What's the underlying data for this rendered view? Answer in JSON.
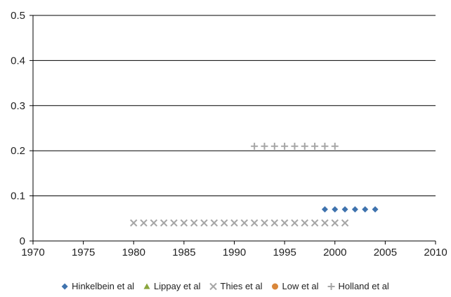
{
  "chart_data": {
    "type": "scatter",
    "title": "",
    "xlabel": "",
    "ylabel": "",
    "xlim": [
      1970,
      2010
    ],
    "ylim": [
      0,
      0.5
    ],
    "x_ticks": [
      1970,
      1975,
      1980,
      1985,
      1990,
      1995,
      2000,
      2005,
      2010
    ],
    "y_ticks": [
      0,
      0.1,
      0.2,
      0.3,
      0.4,
      0.5
    ],
    "x_tick_labels": [
      "1970",
      "1975",
      "1980",
      "1985",
      "1990",
      "1995",
      "2000",
      "2005",
      "2010"
    ],
    "y_tick_labels": [
      "0",
      "0.1",
      "0.2",
      "0.3",
      "0.4",
      "0.5"
    ],
    "grid": "horizontal",
    "legend_position": "bottom",
    "series": [
      {
        "name": "Hinkelbein et al",
        "marker": "diamond",
        "color": "#3f73ae",
        "points": [
          [
            1999,
            0.07
          ],
          [
            2000,
            0.07
          ],
          [
            2001,
            0.07
          ],
          [
            2002,
            0.07
          ],
          [
            2003,
            0.07
          ],
          [
            2004,
            0.07
          ]
        ]
      },
      {
        "name": "Lippay et al",
        "marker": "triangle",
        "color": "#8aa63d",
        "points": []
      },
      {
        "name": "Thies et al",
        "marker": "x",
        "color": "#a6a6a6",
        "points": [
          [
            1980,
            0.04
          ],
          [
            1981,
            0.04
          ],
          [
            1982,
            0.04
          ],
          [
            1983,
            0.04
          ],
          [
            1984,
            0.04
          ],
          [
            1985,
            0.04
          ],
          [
            1986,
            0.04
          ],
          [
            1987,
            0.04
          ],
          [
            1988,
            0.04
          ],
          [
            1989,
            0.04
          ],
          [
            1990,
            0.04
          ],
          [
            1991,
            0.04
          ],
          [
            1992,
            0.04
          ],
          [
            1993,
            0.04
          ],
          [
            1994,
            0.04
          ],
          [
            1995,
            0.04
          ],
          [
            1996,
            0.04
          ],
          [
            1997,
            0.04
          ],
          [
            1998,
            0.04
          ],
          [
            1999,
            0.04
          ],
          [
            2000,
            0.04
          ],
          [
            2001,
            0.04
          ]
        ]
      },
      {
        "name": "Low et al",
        "marker": "circle",
        "color": "#d9873a",
        "points": []
      },
      {
        "name": "Holland et al",
        "marker": "plus",
        "color": "#a6a6a6",
        "points": [
          [
            1992,
            0.21
          ],
          [
            1993,
            0.21
          ],
          [
            1994,
            0.21
          ],
          [
            1995,
            0.21
          ],
          [
            1996,
            0.21
          ],
          [
            1997,
            0.21
          ],
          [
            1998,
            0.21
          ],
          [
            1999,
            0.21
          ],
          [
            2000,
            0.21
          ]
        ]
      }
    ]
  }
}
